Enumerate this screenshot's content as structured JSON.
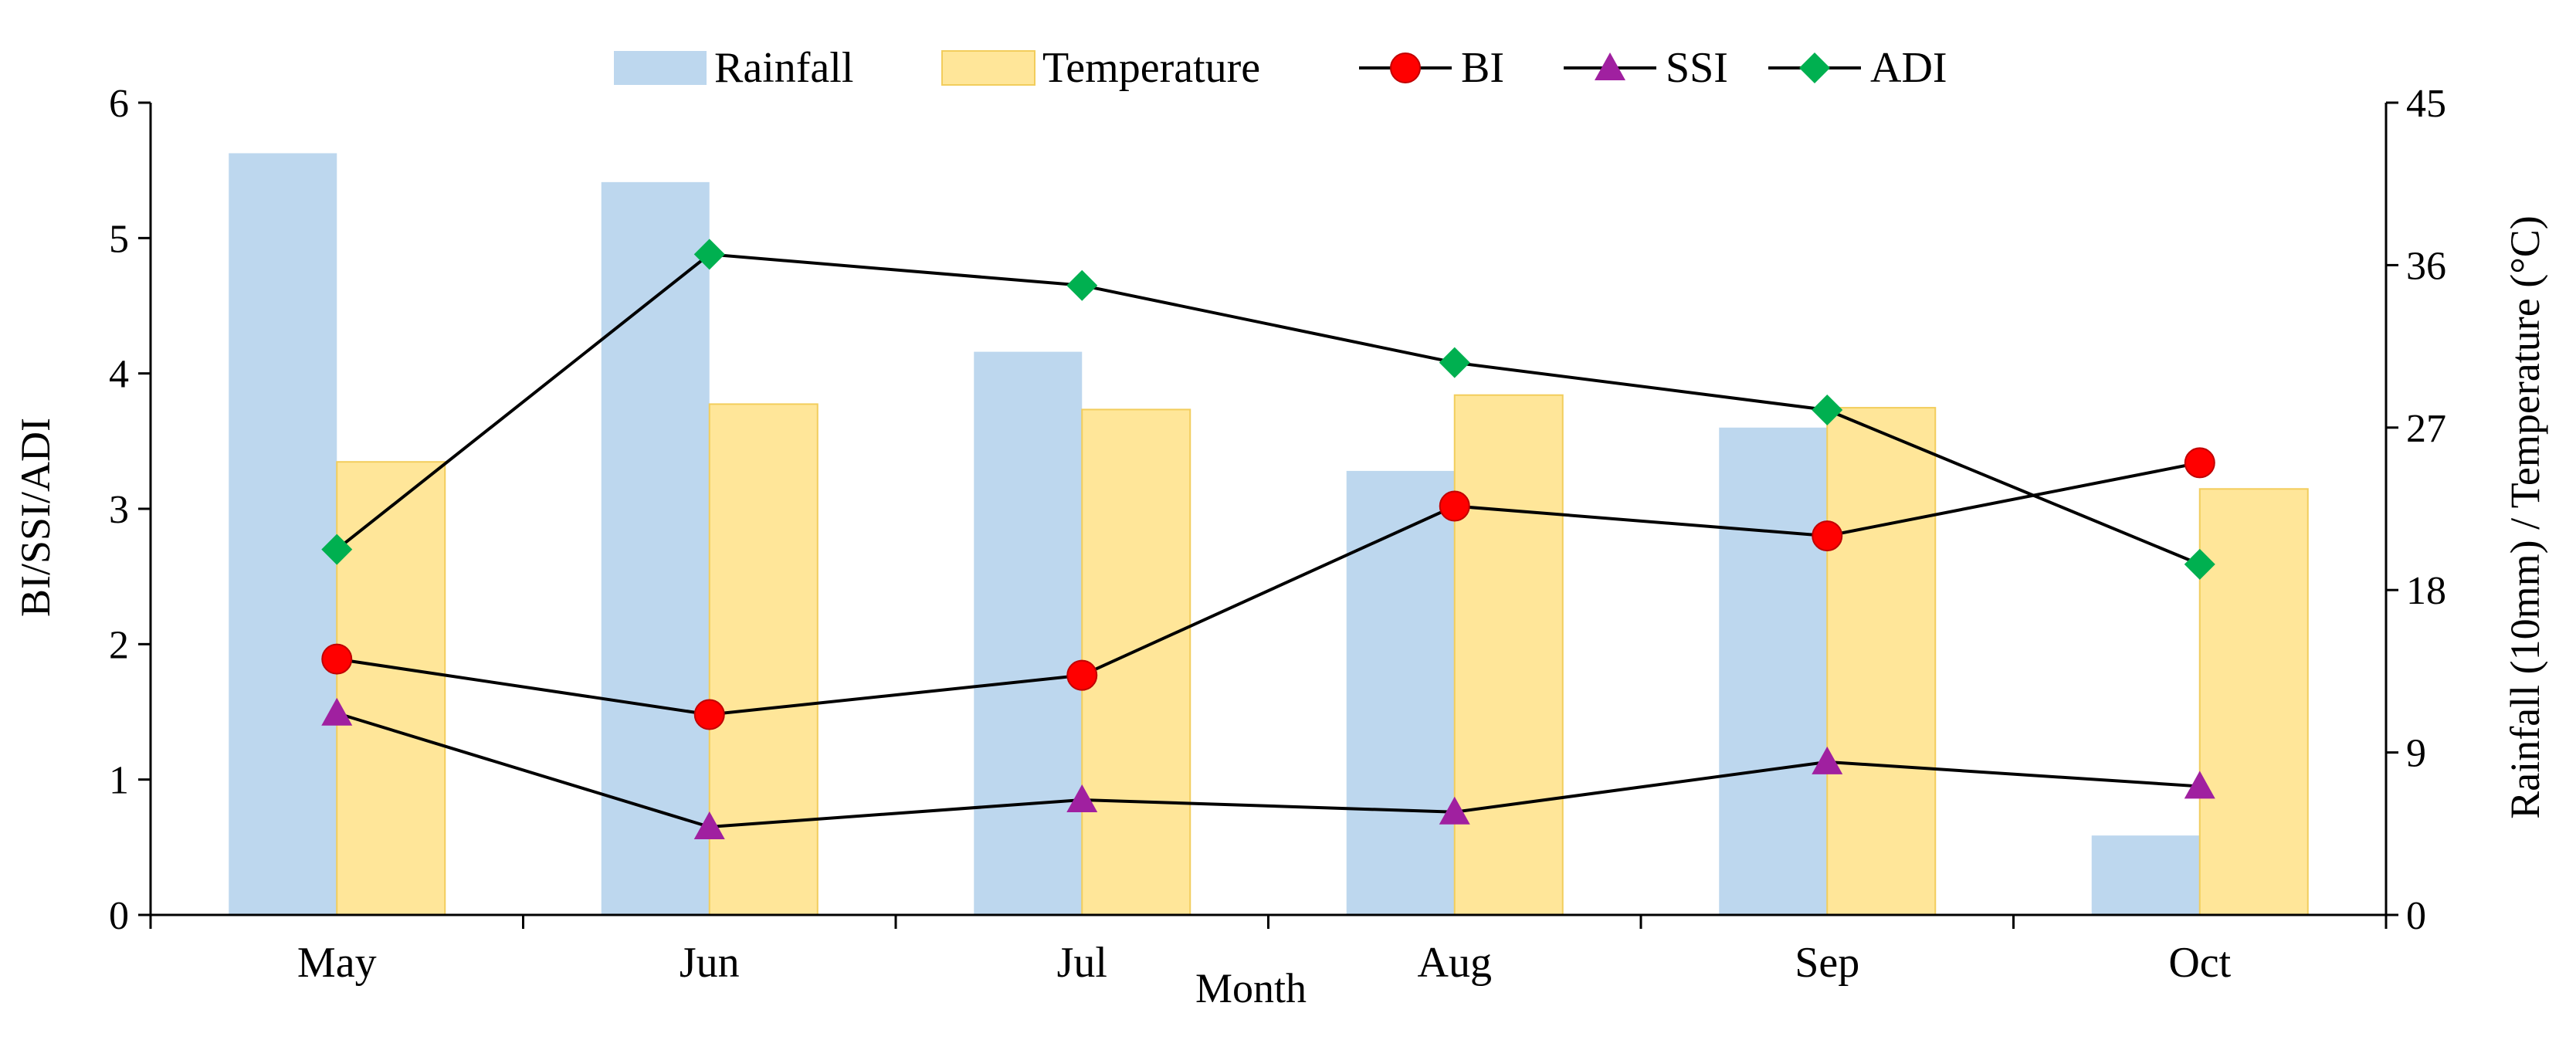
{
  "chart_data": {
    "type": "bar-line-combo",
    "categories": [
      "May",
      "Jun",
      "Jul",
      "Aug",
      "Sep",
      "Oct"
    ],
    "xlabel": "Month",
    "ylabel_left": "BI/SSI/ADI",
    "ylabel_right": "Rainfall (10mm) / Temperature (°C)",
    "ylim_left": [
      0,
      6
    ],
    "ylim_right": [
      0,
      45
    ],
    "yticks_left": [
      "0",
      "1",
      "2",
      "3",
      "4",
      "5",
      "6"
    ],
    "yticks_right": [
      "0",
      "9",
      "18",
      "27",
      "36",
      "45"
    ],
    "grid": false,
    "legend_position": "top",
    "bar_series": [
      {
        "name": "Rainfall",
        "axis": "right",
        "color": "#bdd7ee",
        "values": [
          42.2,
          40.6,
          31.2,
          24.6,
          27.0,
          4.4
        ]
      },
      {
        "name": "Temperature",
        "axis": "right",
        "color": "#ffe699",
        "values": [
          25.1,
          28.3,
          28.0,
          28.8,
          28.1,
          23.6
        ]
      }
    ],
    "line_series": [
      {
        "name": "BI",
        "axis": "left",
        "marker": "circle",
        "color": "#ff0000",
        "values": [
          1.89,
          1.48,
          1.77,
          3.02,
          2.8,
          3.34
        ]
      },
      {
        "name": "SSI",
        "axis": "left",
        "marker": "triangle",
        "color": "#a020a0",
        "values": [
          1.49,
          0.65,
          0.85,
          0.76,
          1.13,
          0.95
        ]
      },
      {
        "name": "ADI",
        "axis": "left",
        "marker": "diamond",
        "color": "#00b050",
        "values": [
          2.7,
          4.88,
          4.65,
          4.08,
          3.73,
          2.59
        ]
      }
    ]
  }
}
